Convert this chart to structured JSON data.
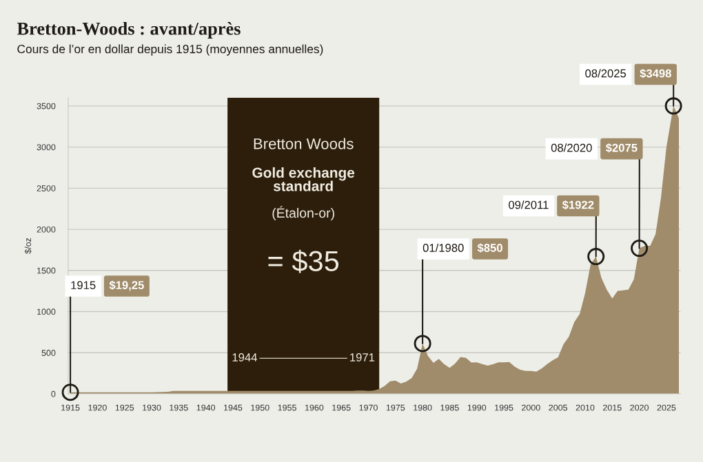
{
  "chart_data": {
    "type": "area",
    "title": "Bretton-Woods : avant/après",
    "subtitle": "Cours de l’or en dollar depuis 1915 (moyennes annuelles)",
    "ylabel": "$/oz",
    "x": [
      1915,
      1916,
      1917,
      1918,
      1919,
      1920,
      1925,
      1930,
      1933,
      1934,
      1940,
      1945,
      1950,
      1955,
      1960,
      1965,
      1967,
      1968,
      1969,
      1970,
      1971,
      1972,
      1973,
      1974,
      1975,
      1976,
      1977,
      1978,
      1979,
      1980,
      1981,
      1982,
      1983,
      1984,
      1985,
      1986,
      1987,
      1988,
      1989,
      1990,
      1991,
      1992,
      1993,
      1994,
      1995,
      1996,
      1997,
      1998,
      1999,
      2000,
      2001,
      2002,
      2003,
      2004,
      2005,
      2006,
      2007,
      2008,
      2009,
      2010,
      2011,
      2012,
      2013,
      2014,
      2015,
      2016,
      2017,
      2018,
      2019,
      2020,
      2021,
      2022,
      2023,
      2024,
      2025,
      2026.3,
      2027.3
    ],
    "series": [
      {
        "color": "#a08c6a",
        "values": [
          19.25,
          20,
          20,
          20,
          20,
          20,
          20,
          20,
          25,
          35,
          35,
          35,
          35,
          35,
          35,
          35,
          35,
          39,
          41,
          36,
          41,
          58,
          97,
          154,
          161,
          125,
          148,
          193,
          307,
          612,
          460,
          376,
          424,
          361,
          317,
          368,
          447,
          437,
          381,
          383,
          362,
          344,
          360,
          384,
          384,
          388,
          331,
          294,
          279,
          279,
          271,
          310,
          363,
          409,
          444,
          603,
          695,
          872,
          972,
          1225,
          1572,
          1669,
          1411,
          1266,
          1160,
          1251,
          1257,
          1268,
          1393,
          1770,
          1799,
          1800,
          1943,
          2386,
          3000,
          3500,
          3350
        ]
      }
    ],
    "xlim": [
      1914.6,
      2027.6
    ],
    "xticks": [
      1915,
      1920,
      1925,
      1930,
      1935,
      1940,
      1945,
      1950,
      1955,
      1960,
      1965,
      1970,
      1975,
      1980,
      1985,
      1990,
      1995,
      2000,
      2005,
      2010,
      2015,
      2020,
      2025
    ],
    "ylim": [
      0,
      3600
    ],
    "yticks": [
      0,
      500,
      1000,
      1500,
      2000,
      2500,
      3000,
      3500
    ],
    "grid": "y",
    "bands": [
      {
        "axis": "x",
        "from": 1944,
        "to": 1972,
        "label": "Bretton Woods",
        "color": "#2c1e0a"
      }
    ],
    "annotations": [
      {
        "text": "1915",
        "x": 1915,
        "y": 19.25
      },
      "$19,25",
      {
        "text": "01/1980",
        "x": 1980,
        "y": 612
      },
      "$850",
      "09/2011",
      {
        "text": "$1922",
        "x": 2012,
        "y": 1669
      },
      "08/2020",
      {
        "text": "$2075",
        "x": 2020,
        "y": 1770
      },
      "08/2025",
      {
        "text": "$3498",
        "x": 2026.3,
        "y": 3500
      },
      "Gold exchange\nstandard",
      "(Étalon-or)",
      "= $35",
      "1944",
      "1971"
    ]
  }
}
